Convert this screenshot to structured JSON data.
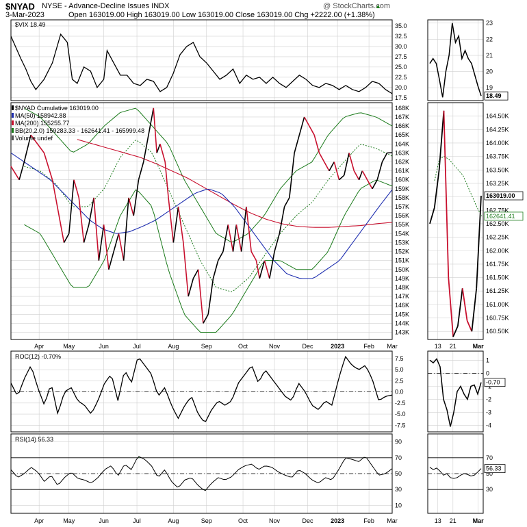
{
  "header": {
    "symbol": "$NYAD",
    "description": "NYSE - Advance-Decline Issues  INDX",
    "date": "3-Mar-2023",
    "ohlc": "Open 163019.00  High 163019.00  Low 163019.00  Close 163019.00  Chg +2222.00 (+1.38%)",
    "watermark": "@ StockCharts.com",
    "up_marker": "▲"
  },
  "colors": {
    "price": "#000000",
    "down": "#c8102e",
    "ma50": "#1f2fb0",
    "ma200": "#c8102e",
    "bb": "#1a7a1a",
    "bb_mid": "#1a7a1a",
    "grid": "#d0d0d0",
    "rsi_fill": "#4a8a4a"
  },
  "chart_data": [
    {
      "panel": "vix",
      "type": "line",
      "legend": "$VIX 18.49",
      "last_value_label": "18.49",
      "y_ticks": [
        "35.0",
        "32.5",
        "30.0",
        "27.5",
        "25.0",
        "22.5",
        "20.0",
        "17.5"
      ],
      "ylim": [
        16.8,
        36.5
      ],
      "x_index_max": 230,
      "x": [
        0,
        6,
        9,
        12,
        15,
        20,
        25,
        30,
        34,
        37,
        40,
        44,
        48,
        52,
        56,
        58,
        62,
        66,
        70,
        74,
        78,
        82,
        86,
        90,
        94,
        98,
        102,
        106,
        110,
        114,
        118,
        122,
        126,
        130,
        134,
        138,
        142,
        146,
        150,
        154,
        158,
        162,
        166,
        170,
        174,
        178,
        182,
        186,
        190,
        194,
        198,
        202,
        206,
        210,
        214,
        218,
        222,
        226,
        230
      ],
      "values": [
        32.5,
        27,
        24.5,
        21.5,
        19.5,
        22,
        26,
        33,
        31,
        22,
        21,
        25,
        24,
        20,
        22,
        29,
        26,
        23,
        23,
        21,
        20.5,
        22,
        21.5,
        19,
        20,
        23.5,
        28,
        30,
        31,
        27.5,
        26,
        24,
        22,
        23,
        24.5,
        21,
        23,
        22,
        22.5,
        21,
        22.5,
        21,
        20,
        21.5,
        23,
        22,
        20.5,
        20,
        21,
        20.5,
        19.5,
        20.5,
        19.5,
        19,
        20,
        21.5,
        21,
        19.5,
        18.49
      ],
      "zoom_y_ticks": [
        "23",
        "22",
        "21",
        "20",
        "19"
      ],
      "zoom_ylim": [
        18.2,
        23.2
      ],
      "zoom_values": [
        20.5,
        20.8,
        20.5,
        19.5,
        18.4,
        20,
        21,
        23,
        21.8,
        22.2,
        20.8,
        21.3,
        20.8,
        20.5,
        19.8,
        19.1,
        18.49
      ]
    },
    {
      "panel": "nyad",
      "type": "line",
      "legend": [
        "$NYAD Cumulative 163019.00",
        "MA(50) 158942.88",
        "MA(200) 155255.77",
        "BB(20,2.0) 159283.33 - 162641.41 - 165999.48",
        "Volume undef"
      ],
      "y_ticks": [
        "168K",
        "167K",
        "166K",
        "165K",
        "164K",
        "163K",
        "162K",
        "161K",
        "160K",
        "159K",
        "158K",
        "157K",
        "156K",
        "155K",
        "154K",
        "153K",
        "152K",
        "151K",
        "150K",
        "149K",
        "148K",
        "147K",
        "146K",
        "145K",
        "144K",
        "143K"
      ],
      "ylim": [
        142.2,
        168.6
      ],
      "x_index_max": 230,
      "x_tick_labels": [
        "Apr",
        "May",
        "Jun",
        "Jul",
        "Aug",
        "Sep",
        "Oct",
        "Nov",
        "Dec",
        "2023",
        "Feb",
        "Mar"
      ],
      "x_tick_index": [
        17,
        35,
        56,
        76,
        98,
        118,
        140,
        159,
        179,
        197,
        216,
        230
      ],
      "x": [
        0,
        5,
        8,
        12,
        16,
        20,
        25,
        28,
        32,
        35,
        38,
        41,
        44,
        47,
        50,
        53,
        56,
        59,
        62,
        65,
        68,
        71,
        74,
        77,
        80,
        83,
        86,
        88,
        90,
        93,
        95,
        98,
        101,
        104,
        107,
        110,
        113,
        116,
        119,
        122,
        125,
        128,
        131,
        134,
        136,
        139,
        142,
        145,
        148,
        150,
        153,
        156,
        159,
        162,
        165,
        168,
        171,
        174,
        177,
        180,
        183,
        186,
        189,
        192,
        195,
        198,
        201,
        204,
        207,
        210,
        212,
        215,
        218,
        221,
        224,
        227,
        230
      ],
      "values": [
        161.5,
        160,
        162,
        165,
        164,
        163,
        160,
        157,
        153,
        154,
        160,
        158,
        153,
        155,
        158,
        151,
        155,
        150,
        152,
        154,
        151,
        158,
        156,
        160,
        162,
        165,
        168,
        163,
        164,
        162,
        158,
        153,
        157,
        153,
        147,
        149,
        150,
        144,
        145,
        149,
        151,
        152,
        155,
        152,
        155,
        152,
        157,
        152,
        151,
        149,
        151,
        149,
        152,
        154,
        157,
        158,
        163,
        165,
        167,
        166,
        165,
        163,
        162,
        161,
        162,
        160,
        160.5,
        163,
        161,
        160,
        161,
        160,
        159,
        160,
        162,
        163,
        163.02
      ],
      "ma50": [
        163,
        162,
        161,
        160,
        158.5,
        157,
        155.5,
        154.5,
        154,
        154.2,
        154.8,
        155.5,
        156.5,
        157.5,
        158.5,
        159,
        158.5,
        157,
        155,
        153,
        151,
        149.5,
        149,
        149,
        150,
        151,
        153,
        155,
        157,
        158.9
      ],
      "ma200": [
        164.5,
        164,
        163.5,
        163,
        162.5,
        161.8,
        161,
        160.2,
        159.2,
        158.2,
        157.2,
        156.3,
        155.6,
        155.1,
        154.8,
        154.7,
        154.7,
        154.8,
        154.9,
        155.1,
        155.26
      ],
      "bb_upper": [
        168,
        167,
        165,
        163,
        164,
        166,
        167.5,
        168,
        166,
        164,
        160,
        157,
        154,
        153,
        154,
        156,
        159,
        161,
        162,
        165,
        167,
        167.5,
        167,
        166
      ],
      "bb_mid": [
        161.5,
        161,
        159.5,
        157,
        157,
        159,
        162.5,
        164.5,
        163,
        159,
        155,
        151,
        148,
        147.5,
        149,
        151.5,
        154,
        156,
        157.5,
        160,
        162,
        164,
        163.5,
        162.64
      ],
      "bb_lower": [
        155,
        154,
        151,
        148,
        148,
        151,
        156,
        159,
        157,
        150,
        145,
        143,
        143,
        145,
        148,
        151,
        151,
        150,
        150,
        152,
        156,
        159,
        160,
        159.3
      ],
      "zoom_y_ticks": [
        "164.50K",
        "164.25K",
        "164.00K",
        "163.75K",
        "163.50K",
        "163.25K",
        "163.00K",
        "162.75K",
        "162.50K",
        "162.25K",
        "162.00K",
        "161.75K",
        "161.50K",
        "161.25K",
        "161.00K",
        "160.75K",
        "160.50K"
      ],
      "zoom_ylim": [
        160.35,
        164.75
      ],
      "zoom_values": [
        162.5,
        162.8,
        163.5,
        164.6,
        161.5,
        160.4,
        160.6,
        161.3,
        160.7,
        160.5,
        161.3,
        163.02
      ],
      "zoom_bb_mid": [
        163.3,
        163.7,
        163.75,
        163.7,
        163.6,
        163.5,
        163.4,
        163.2,
        163.0,
        162.8,
        162.64
      ],
      "zoom_labels": [
        "163019.00",
        "162641.41"
      ]
    },
    {
      "panel": "roc",
      "type": "line",
      "legend": "ROC(12) -0.70%",
      "last_value_label": "-0.70",
      "y_ticks": [
        "7.5",
        "5.0",
        "2.5",
        "0.0",
        "-2.5",
        "-5.0",
        "-7.5"
      ],
      "ylim": [
        -9.0,
        9.2
      ],
      "x_index_max": 230,
      "x": [
        0,
        5,
        10,
        14,
        18,
        22,
        26,
        30,
        34,
        38,
        42,
        46,
        50,
        54,
        58,
        62,
        66,
        70,
        74,
        78,
        82,
        86,
        90,
        94,
        98,
        102,
        106,
        110,
        114,
        118,
        122,
        126,
        130,
        134,
        138,
        142,
        146,
        150,
        154,
        158,
        162,
        166,
        170,
        174,
        178,
        182,
        186,
        190,
        194,
        198,
        202,
        206,
        210,
        214,
        218,
        222,
        226,
        230
      ],
      "values": [
        2,
        -1,
        3,
        6,
        1,
        -3,
        2,
        -5,
        0,
        1,
        -2,
        -3,
        -5,
        -2,
        2,
        4,
        -2,
        5,
        2,
        8,
        6,
        4,
        -1,
        1,
        -3,
        -6,
        -3,
        -1,
        -5,
        -7,
        -4,
        -2,
        -3,
        -2,
        2,
        4,
        6,
        2,
        5,
        3,
        1,
        -1,
        -2,
        2,
        0,
        -3,
        -4,
        -2,
        -3,
        3,
        8,
        6,
        5,
        6,
        3,
        -2,
        -1,
        -0.7
      ],
      "zoom_y_ticks": [
        "1",
        "0",
        "-1",
        "-2",
        "-3",
        "-4"
      ],
      "zoom_ylim": [
        -4.5,
        1.7
      ],
      "zoom_values": [
        1.0,
        0.8,
        1.1,
        0.5,
        -2.0,
        -2.8,
        -4.1,
        -3.0,
        -1.4,
        -1.0,
        -1.6,
        -2.0,
        -1.0,
        -0.9,
        -1.6,
        -0.7
      ]
    },
    {
      "panel": "rsi",
      "type": "line",
      "legend": "RSI(14) 56.33",
      "last_value_label": "56.33",
      "y_ticks": [
        "90",
        "70",
        "50",
        "30",
        "10"
      ],
      "ylim": [
        0,
        100
      ],
      "overbought": 70,
      "oversold": 30,
      "x_index_max": 230,
      "x": [
        0,
        5,
        10,
        14,
        18,
        22,
        26,
        30,
        34,
        38,
        42,
        46,
        50,
        54,
        58,
        62,
        66,
        70,
        74,
        78,
        82,
        86,
        90,
        94,
        98,
        102,
        106,
        110,
        114,
        118,
        122,
        126,
        130,
        134,
        138,
        142,
        146,
        150,
        154,
        158,
        162,
        166,
        170,
        174,
        178,
        182,
        186,
        190,
        194,
        198,
        202,
        206,
        210,
        214,
        218,
        222,
        226,
        230
      ],
      "values": [
        55,
        45,
        50,
        58,
        52,
        40,
        48,
        35,
        45,
        52,
        44,
        42,
        38,
        45,
        55,
        60,
        47,
        62,
        55,
        72,
        68,
        60,
        45,
        55,
        40,
        32,
        42,
        45,
        35,
        28,
        38,
        45,
        42,
        46,
        55,
        60,
        62,
        55,
        60,
        58,
        52,
        48,
        45,
        55,
        50,
        42,
        38,
        45,
        42,
        55,
        70,
        68,
        65,
        72,
        60,
        48,
        50,
        56.33
      ],
      "zoom_y_ticks": [
        "70",
        "50",
        "30"
      ],
      "zoom_ylim": [
        0,
        100
      ],
      "zoom_values": [
        58,
        55,
        57,
        53,
        48,
        50,
        45,
        44,
        45,
        48,
        50,
        49,
        47,
        48,
        52,
        56.33
      ]
    }
  ],
  "zoom_x_labels": [
    "13",
    "21",
    "Mar"
  ],
  "zoom_x_index": [
    2,
    5,
    10
  ],
  "zoom_x_index_max": 11
}
